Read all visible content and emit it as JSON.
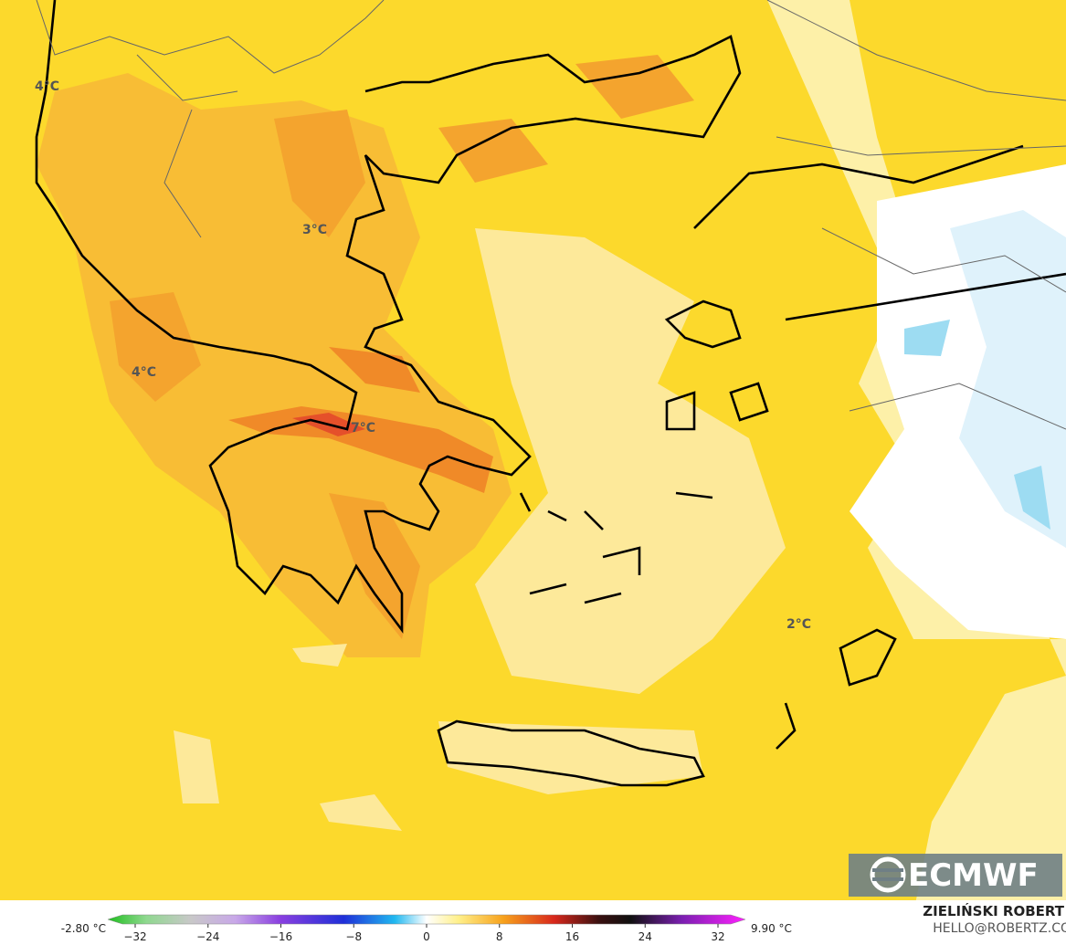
{
  "map": {
    "labels": [
      "4°C",
      "3°C",
      "4°C",
      "7°C",
      "2°C"
    ],
    "logo": "ECMWF"
  },
  "colorbar": {
    "min_label": "-2.80 °C",
    "max_label": "9.90 °C",
    "ticks": [
      {
        "value": -32,
        "label": "−32"
      },
      {
        "value": -24,
        "label": "−24"
      },
      {
        "value": -16,
        "label": "−16"
      },
      {
        "value": -8,
        "label": "−8"
      },
      0,
      8,
      16,
      24,
      32
    ]
  },
  "credit": {
    "name": "ZIELIŃSKI ROBERT",
    "email": "HELLO@ROBERTZ.CO"
  }
}
